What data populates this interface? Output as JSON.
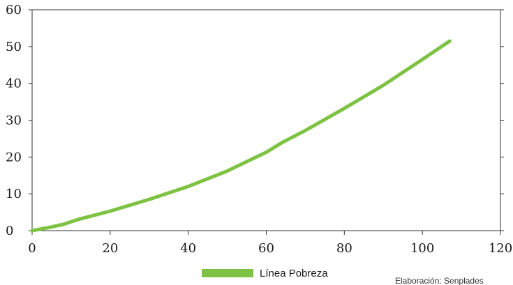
{
  "chart_data": {
    "type": "line",
    "title": "",
    "xlabel": "",
    "ylabel": "",
    "xlim": [
      0,
      120
    ],
    "ylim": [
      0,
      60
    ],
    "x_ticks": [
      "0",
      "20",
      "40",
      "60",
      "80",
      "100",
      "120"
    ],
    "y_ticks": [
      "0",
      "10",
      "20",
      "30",
      "40",
      "50",
      "60"
    ],
    "grid": false,
    "legend_position": "bottom-center",
    "series": [
      {
        "name": "Línea Pobreza",
        "color": "#7dc242",
        "x": [
          0,
          4,
          8,
          10,
          12,
          16,
          20,
          30,
          40,
          50,
          60,
          64,
          70,
          80,
          90,
          100,
          107
        ],
        "y": [
          0,
          0.8,
          1.7,
          2.4,
          3.1,
          4.2,
          5.3,
          8.5,
          12.0,
          16.2,
          21.3,
          23.9,
          27.2,
          33.2,
          39.5,
          46.5,
          51.5
        ]
      }
    ]
  },
  "credit": "Elaboración: Senplades"
}
